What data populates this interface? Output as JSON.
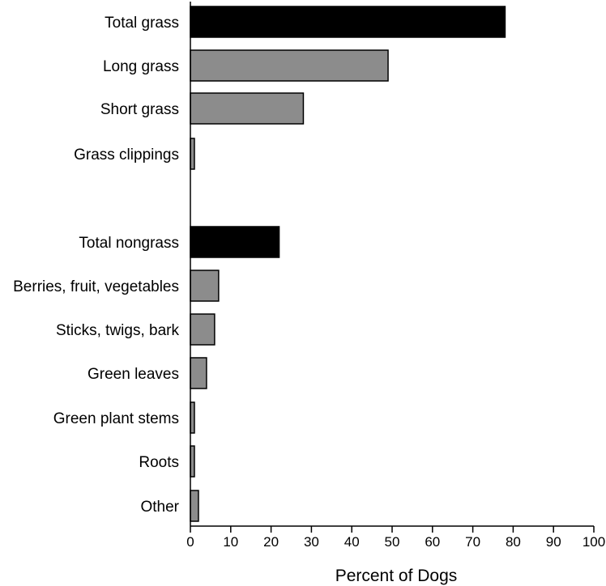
{
  "chart_data": {
    "type": "bar",
    "orientation": "horizontal",
    "title": "",
    "xlabel": "Percent of Dogs",
    "ylabel": "",
    "xlim": [
      0,
      100
    ],
    "xticks": [
      0,
      10,
      20,
      30,
      40,
      50,
      60,
      70,
      80,
      90,
      100
    ],
    "grid": false,
    "legend": "none",
    "colors": {
      "total": "#000000",
      "sub": "#8c8c8c"
    },
    "bars": [
      {
        "label": "Total grass",
        "value": 78,
        "kind": "total"
      },
      {
        "label": "Long grass",
        "value": 49,
        "kind": "sub"
      },
      {
        "label": "Short grass",
        "value": 28,
        "kind": "sub"
      },
      {
        "label": "Grass clippings",
        "value": 1,
        "kind": "sub"
      },
      {
        "label": "Total nongrass",
        "value": 22,
        "kind": "total"
      },
      {
        "label": "Berries, fruit, vegetables",
        "value": 7,
        "kind": "sub"
      },
      {
        "label": "Sticks, twigs, bark",
        "value": 6,
        "kind": "sub"
      },
      {
        "label": "Green leaves",
        "value": 4,
        "kind": "sub"
      },
      {
        "label": "Green plant stems",
        "value": 1,
        "kind": "sub"
      },
      {
        "label": "Roots",
        "value": 1,
        "kind": "sub"
      },
      {
        "label": "Other",
        "value": 2,
        "kind": "sub"
      }
    ]
  }
}
